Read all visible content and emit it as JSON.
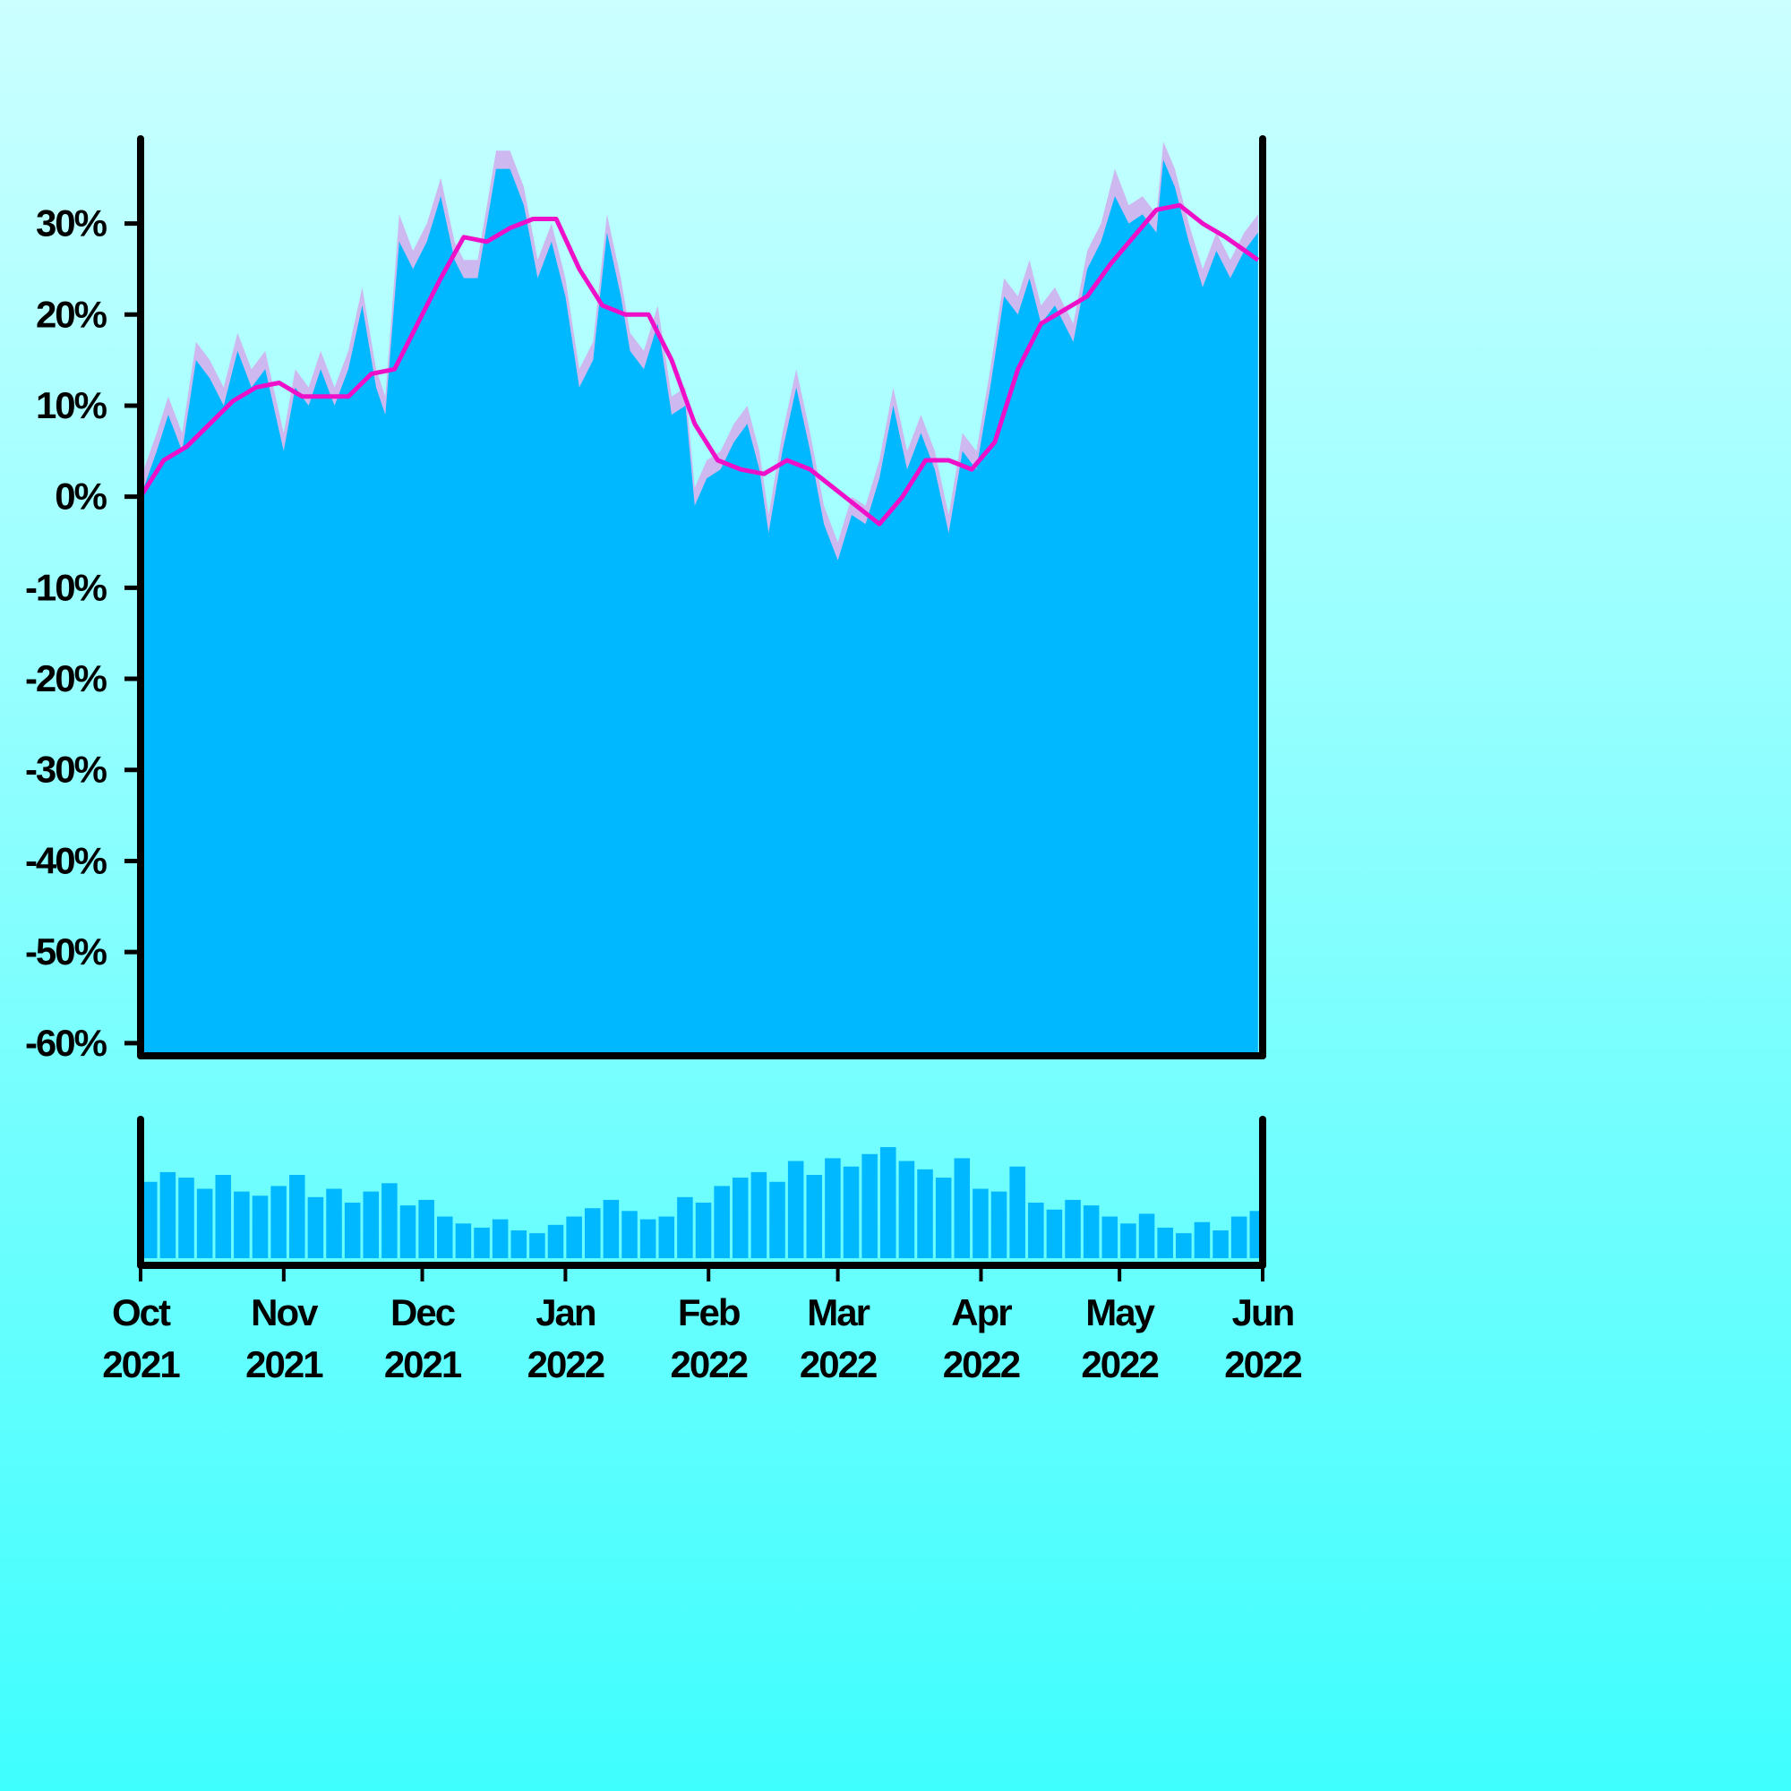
{
  "chart_data": [
    {
      "type": "area",
      "x": [
        0,
        3.5,
        6,
        9,
        12,
        15,
        18,
        21,
        24,
        27,
        31,
        33.5,
        36.4,
        39,
        42,
        45,
        48,
        51,
        53,
        56,
        59,
        62,
        65,
        68,
        70,
        73,
        77,
        80,
        83,
        86,
        89,
        92,
        95,
        98,
        101,
        104,
        106,
        109,
        112,
        115,
        118,
        120,
        122.6,
        125.6,
        128.5,
        131.4,
        134,
        136,
        139,
        142,
        145,
        148,
        151,
        154,
        157,
        160,
        163,
        166,
        169,
        172,
        175,
        178,
        181,
        184,
        187,
        190,
        192.5,
        195,
        198,
        202,
        205,
        208,
        211,
        214,
        217,
        220,
        221.5,
        224,
        227,
        230,
        233,
        236,
        239,
        242
      ],
      "xlim": [
        0,
        243
      ],
      "ylim": [
        -61,
        39.3
      ],
      "yticks": [
        {
          "value": -60,
          "label": "-60%"
        },
        {
          "value": -50,
          "label": "-50%"
        },
        {
          "value": -40,
          "label": "-40%"
        },
        {
          "value": -30,
          "label": "-30%"
        },
        {
          "value": -20,
          "label": "-20%"
        },
        {
          "value": -10,
          "label": "-10%"
        },
        {
          "value": 0,
          "label": "0%"
        },
        {
          "value": 10,
          "label": "10%"
        },
        {
          "value": 20,
          "label": "20%"
        },
        {
          "value": 30,
          "label": "30%"
        }
      ],
      "series": [
        {
          "kind": "area",
          "color": "#cdb8f0",
          "values": [
            2,
            7,
            11,
            7,
            17,
            15,
            12,
            18,
            14,
            16,
            7,
            14,
            12,
            16,
            12,
            16,
            23,
            14,
            11,
            31,
            27,
            30,
            35,
            28,
            26,
            26,
            38,
            38,
            34,
            26,
            30,
            24,
            14,
            17,
            31,
            24,
            18,
            16,
            21,
            11,
            12,
            1,
            4,
            5,
            8,
            10,
            5,
            -2,
            7,
            14,
            7,
            -1,
            -5,
            0,
            -1,
            4,
            12,
            5,
            9,
            5,
            -2,
            7,
            5,
            14,
            24,
            22,
            26,
            21,
            23,
            19,
            27,
            30,
            36,
            32,
            33,
            31,
            39,
            36,
            30,
            25,
            29,
            26,
            29,
            31
          ]
        },
        {
          "kind": "area",
          "color": "#00b8ff",
          "values": [
            0,
            5,
            9,
            5,
            15,
            13,
            10,
            16,
            12,
            14,
            5,
            12,
            10,
            14,
            10,
            14,
            21,
            12,
            9,
            28,
            25,
            28,
            33,
            26,
            24,
            24,
            36,
            36,
            32,
            24,
            28,
            22,
            12,
            15,
            29,
            22,
            16,
            14,
            19,
            9,
            10,
            -1,
            2,
            3,
            6,
            8,
            3,
            -4,
            5,
            12,
            5,
            -3,
            -7,
            -2,
            -3,
            2,
            10,
            3,
            7,
            3,
            -4,
            5,
            3,
            12,
            22,
            20,
            24,
            19,
            21,
            17,
            25,
            28,
            33,
            30,
            31,
            29,
            37,
            34,
            28,
            23,
            27,
            24,
            27,
            29
          ]
        },
        {
          "kind": "line",
          "color": "#ee10c8",
          "x": [
            0,
            5,
            10,
            15,
            20,
            25,
            30,
            35,
            40,
            45,
            50,
            55,
            60,
            65,
            70,
            75,
            80,
            85,
            90,
            95,
            100,
            105,
            110,
            115,
            120,
            125,
            130,
            135,
            140,
            145,
            150,
            155,
            160,
            165,
            170,
            175,
            180,
            185,
            190,
            195,
            200,
            205,
            210,
            215,
            220,
            225,
            230,
            235,
            242
          ],
          "values": [
            0,
            4,
            5.5,
            8,
            10.5,
            12,
            12.5,
            11,
            11,
            11,
            13.5,
            14,
            19,
            24,
            28.5,
            28,
            29.5,
            30.5,
            30.5,
            25,
            21,
            20,
            20,
            15,
            8,
            4,
            3,
            2.5,
            4,
            3,
            1,
            -1,
            -3,
            0,
            4,
            4,
            3,
            6,
            14,
            19,
            20.5,
            22,
            25.5,
            28.5,
            31.5,
            32,
            30,
            28.5,
            26
          ]
        }
      ]
    },
    {
      "type": "bar",
      "x": [
        0,
        4,
        8,
        12,
        16,
        20,
        24,
        28,
        32,
        36,
        40,
        44,
        48,
        52,
        56,
        60,
        64,
        68,
        72,
        76,
        80,
        84,
        88,
        92,
        96,
        100,
        104,
        108,
        112,
        116,
        120,
        124,
        128,
        132,
        136,
        140,
        144,
        148,
        152,
        156,
        160,
        164,
        168,
        172,
        176,
        180,
        184,
        188,
        192,
        196,
        200,
        204,
        208,
        212,
        216,
        220,
        224,
        228,
        232,
        236,
        240
      ],
      "values": [
        55,
        62,
        58,
        50,
        60,
        48,
        45,
        52,
        60,
        44,
        50,
        40,
        48,
        54,
        38,
        42,
        30,
        25,
        22,
        28,
        20,
        18,
        24,
        30,
        36,
        42,
        34,
        28,
        30,
        44,
        40,
        52,
        58,
        62,
        55,
        70,
        60,
        72,
        66,
        75,
        80,
        70,
        64,
        58,
        72,
        50,
        48,
        66,
        40,
        35,
        42,
        38,
        30,
        25,
        32,
        22,
        18,
        26,
        20,
        30,
        34
      ],
      "color": "#00b8ff",
      "xlim": [
        0,
        243
      ],
      "ylim": [
        0,
        100
      ],
      "xticks": [
        {
          "value": 0,
          "label": "Oct 2021"
        },
        {
          "value": 31,
          "label": "Nov 2021"
        },
        {
          "value": 61,
          "label": "Dec 2021"
        },
        {
          "value": 92,
          "label": "Jan 2022"
        },
        {
          "value": 123,
          "label": "Feb 2022"
        },
        {
          "value": 151,
          "label": "Mar 2022"
        },
        {
          "value": 182,
          "label": "Apr 2022"
        },
        {
          "value": 212,
          "label": "May 2022"
        },
        {
          "value": 243,
          "label": "Jun 2022"
        }
      ]
    }
  ]
}
